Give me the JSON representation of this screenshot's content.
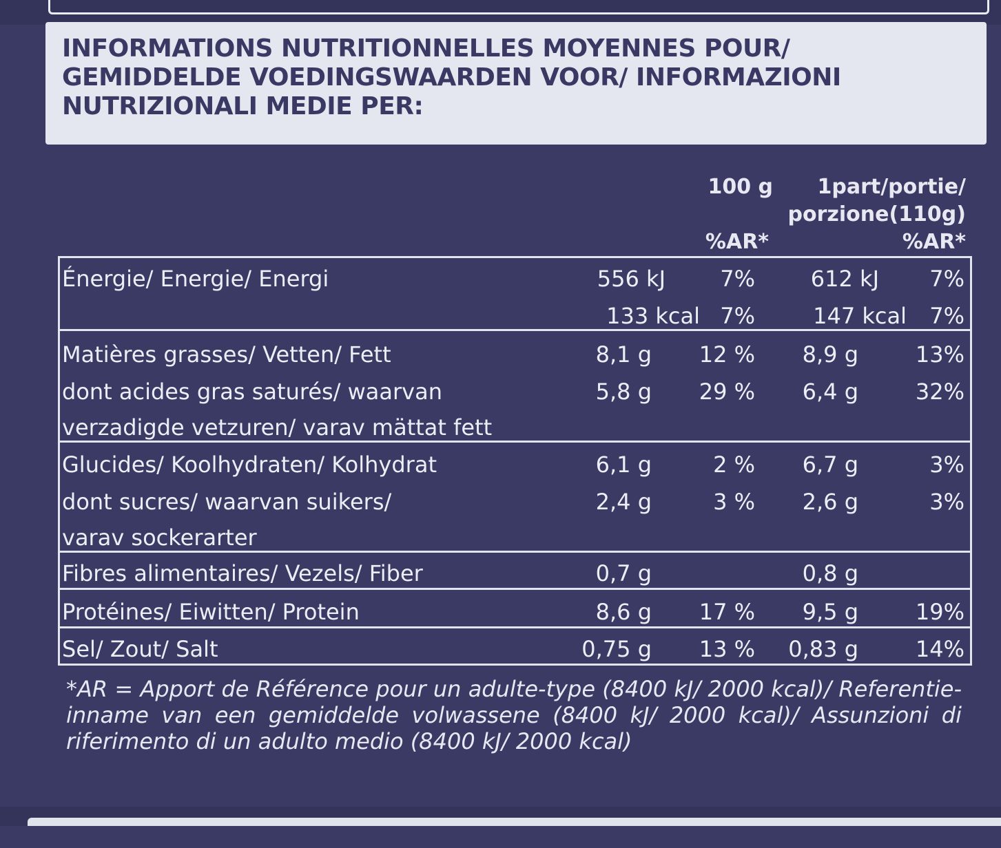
{
  "header": {
    "title": "INFORMATIONS NUTRITIONNELLES MOYENNES POUR/ GEMIDDELDE VOEDINGSWAARDEN VOOR/ INFORMAZIONI NUTRIZIONALI MEDIE PER:"
  },
  "columns": {
    "per100": "100 g",
    "portion_line1": "1part/portie/",
    "portion_line2": "porzione(110g)",
    "ar1": "%AR*",
    "ar2": "%AR*"
  },
  "rows": [
    {
      "name": "Énergie/ Energie/ Energi",
      "v100": "556 kJ",
      "ar100": "7%",
      "vp": "612 kJ",
      "arp": "7%"
    },
    {
      "name": "",
      "v100": "133 kcal",
      "ar100": "7%",
      "vp": "147 kcal",
      "arp": "7%"
    },
    {
      "name": "Matières grasses/ Vetten/ Fett",
      "v100": "8,1 g",
      "ar100": "12 %",
      "vp": "8,9 g",
      "arp": "13%"
    },
    {
      "name": "dont acides gras saturés/ waarvan",
      "v100": "5,8 g",
      "ar100": "29 %",
      "vp": "6,4 g",
      "arp": "32%"
    },
    {
      "name": "verzadigde vetzuren/ varav mättat fett",
      "v100": "",
      "ar100": "",
      "vp": "",
      "arp": ""
    },
    {
      "name": "Glucides/ Koolhydraten/ Kolhydrat",
      "v100": "6,1 g",
      "ar100": "2 %",
      "vp": "6,7 g",
      "arp": "3%"
    },
    {
      "name": "dont sucres/ waarvan suikers/",
      "v100": "2,4 g",
      "ar100": "3 %",
      "vp": "2,6 g",
      "arp": "3%"
    },
    {
      "name": "varav sockerarter",
      "v100": "",
      "ar100": "",
      "vp": "",
      "arp": ""
    },
    {
      "name": "Fibres alimentaires/ Vezels/ Fiber",
      "v100": "0,7 g",
      "ar100": "",
      "vp": "0,8 g",
      "arp": ""
    },
    {
      "name": "Protéines/ Eiwitten/ Protein",
      "v100": "8,6 g",
      "ar100": "17 %",
      "vp": "9,5 g",
      "arp": "19%"
    },
    {
      "name": "Sel/ Zout/ Salt",
      "v100": "0,75 g",
      "ar100": "13 %",
      "vp": "0,83 g",
      "arp": "14%"
    }
  ],
  "footnote": "*AR = Apport de Référence pour un adulte-type (8400 kJ/ 2000 kcal)/ Referentie-inname van een gemiddelde volwassene (8400 kJ/ 2000 kcal)/ Assunzioni di riferimento di un adulto medio (8400 kJ/ 2000 kcal)",
  "colors": {
    "label_background": "#3b3a64",
    "header_background": "#e4e7ef",
    "text_light": "#eceef6"
  }
}
